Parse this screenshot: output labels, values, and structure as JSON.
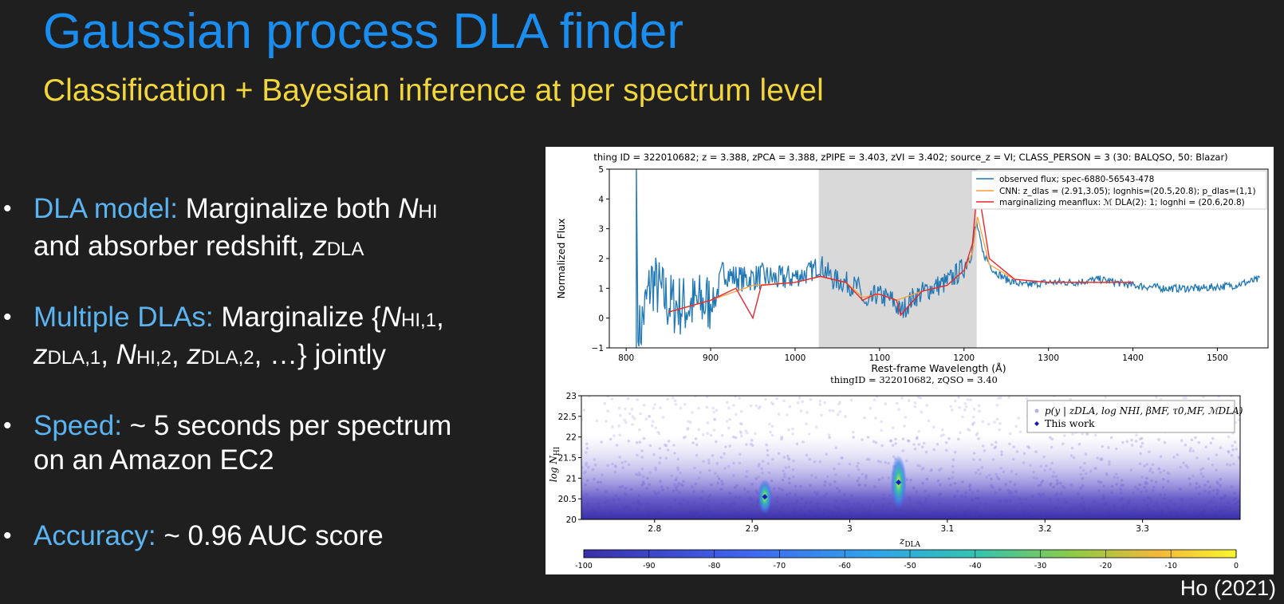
{
  "slide": {
    "title": "Gaussian process DLA finder",
    "subtitle": "Classification + Bayesian inference at per spectrum level",
    "credit": "Ho (2021)"
  },
  "bullets": [
    {
      "label": "DLA model:",
      "line1_a": " Marginalize both ",
      "N": "N",
      "HI": "HI",
      "line2_a": "and absorber redshift, ",
      "z": "z",
      "DLA": "DLA"
    },
    {
      "label": "Multiple DLAs:",
      "line1_a": " Marginalize {",
      "N": "N",
      "HI1": "HI,1",
      "comma": ",",
      "z": "z",
      "DLA1": "DLA,1",
      "sep": ", ",
      "N2": "N",
      "HI2": "HI,2",
      "sep2": ", ",
      "z2": "z",
      "DLA2": "DLA,2",
      "tail": ", …} jointly"
    },
    {
      "label": "Speed:",
      "text": " ~ 5 seconds per spectrum",
      "line2": "on an Amazon EC2"
    },
    {
      "label": "Accuracy:",
      "text": " ~ 0.96 AUC score"
    }
  ],
  "chart_data": [
    {
      "type": "line",
      "title": "thing ID = 322010682; z = 3.388, zPCA = 3.388, zPIPE = 3.403, zVI = 3.402; source_z = VI; CLASS_PERSON = 3 (30: BALQSO, 50: Blazar)",
      "xlabel": "Rest-frame Wavelength (Å)",
      "ylabel": "Normalized Flux",
      "xlim": [
        780,
        1560
      ],
      "ylim": [
        -1,
        5
      ],
      "xticks": [
        "800",
        "900",
        "1000",
        "1100",
        "1200",
        "1300",
        "1400",
        "1500"
      ],
      "yticks": [
        "−1",
        "0",
        "1",
        "2",
        "3",
        "4",
        "5"
      ],
      "shaded_region": [
        1028,
        1215
      ],
      "legend_placement": "top-right",
      "series": [
        {
          "name": "observed flux; spec-6880-56543-478",
          "color": "#1f77b4",
          "x": [
            812,
            830,
            850,
            870,
            890,
            905,
            915,
            925,
            940,
            960,
            980,
            1000,
            1015,
            1030,
            1045,
            1060,
            1075,
            1085,
            1095,
            1105,
            1115,
            1125,
            1140,
            1160,
            1180,
            1200,
            1210,
            1215,
            1222,
            1235,
            1250,
            1270,
            1300,
            1330,
            1360,
            1400,
            1440,
            1480,
            1520,
            1550
          ],
          "y": [
            -1,
            1.3,
            0.5,
            0.4,
            0.5,
            0.6,
            1.6,
            1.4,
            1.3,
            1.4,
            1.3,
            1.4,
            1.5,
            1.8,
            1.3,
            1.2,
            1.0,
            0.3,
            0.8,
            0.7,
            0.6,
            0.2,
            0.7,
            1.0,
            1.2,
            1.7,
            2.4,
            3.2,
            2.2,
            1.6,
            1.3,
            1.1,
            1.2,
            1.2,
            1.3,
            1.1,
            1.0,
            1.0,
            1.1,
            1.3
          ]
        },
        {
          "name": "CNN: z_dlas = (2.91,3.05); lognhis=(20.5,20.8); p_dlas=(1,1)",
          "color": "#ff9f3c",
          "x": [
            850,
            900,
            950,
            1000,
            1030,
            1060,
            1080,
            1100,
            1120,
            1150,
            1180,
            1200,
            1210,
            1216,
            1230,
            1260,
            1300,
            1350,
            1400
          ],
          "y": [
            0.2,
            0.6,
            1.1,
            1.2,
            1.4,
            1.2,
            0.7,
            0.8,
            0.6,
            0.9,
            1.1,
            1.6,
            2.2,
            3.4,
            1.8,
            1.3,
            1.2,
            1.2,
            1.2
          ]
        },
        {
          "name": "marginalizing meanflux: ℳ DLA(2): 1; lognhi = (20.6,20.8)",
          "color": "#e8262c",
          "x": [
            850,
            900,
            930,
            950,
            960,
            1000,
            1030,
            1060,
            1080,
            1095,
            1100,
            1120,
            1125,
            1150,
            1180,
            1200,
            1210,
            1216,
            1230,
            1260,
            1300,
            1350,
            1400
          ],
          "y": [
            0.2,
            0.6,
            1.0,
            0.0,
            1.1,
            1.2,
            1.4,
            1.2,
            0.6,
            0.8,
            0.8,
            0.6,
            0.1,
            0.9,
            1.1,
            1.6,
            2.5,
            4.5,
            2.0,
            1.3,
            1.2,
            1.2,
            1.2
          ]
        }
      ]
    },
    {
      "type": "scatter",
      "title": "thingID = 322010682, zQSO = 3.40",
      "xlabel": "z",
      "xlabel_sub": "DLA",
      "ylabel": "log N",
      "ylabel_sub": "HI",
      "xlim": [
        2.725,
        3.4
      ],
      "ylim": [
        20,
        23
      ],
      "xticks": [
        "2.8",
        "2.9",
        "3",
        "3.1",
        "3.2",
        "3.3"
      ],
      "yticks": [
        "20",
        "20.5",
        "21",
        "21.5",
        "22",
        "22.5",
        "23"
      ],
      "legend": [
        "p(y | zDLA, log NHI, βMF, τ0,MF, ℳDLA)",
        "This work"
      ],
      "legend_placement": "top-right",
      "this_work_points": [
        {
          "x": 2.913,
          "y": 20.55
        },
        {
          "x": 3.05,
          "y": 20.9
        }
      ],
      "hotspots": [
        {
          "x": 2.913,
          "y": 20.55
        },
        {
          "x": 3.05,
          "y": 20.9
        }
      ],
      "colorbar": {
        "min": -100,
        "max": 0,
        "ticks": [
          "-100",
          "-90",
          "-80",
          "-70",
          "-60",
          "-50",
          "-40",
          "-30",
          "-20",
          "-10",
          "0"
        ]
      },
      "colors": {
        "low": "#3a2fa8",
        "mid": "#36b7c4",
        "high": "#f9e53a",
        "marker": "#1a18b8"
      }
    }
  ]
}
